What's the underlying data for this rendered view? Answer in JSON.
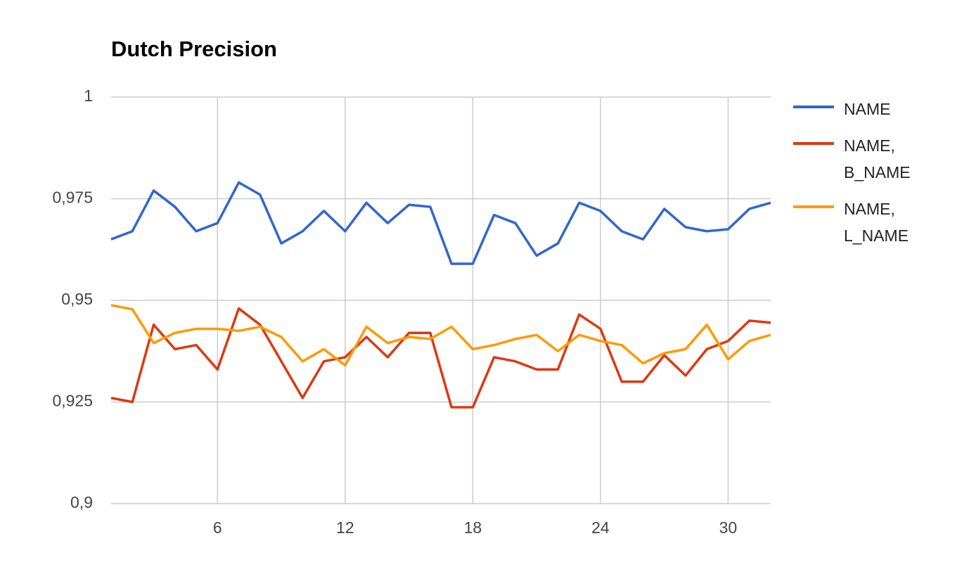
{
  "chart_data": {
    "type": "line",
    "title": "Dutch Precision",
    "x": [
      1,
      2,
      3,
      4,
      5,
      6,
      7,
      8,
      9,
      10,
      11,
      12,
      13,
      14,
      15,
      16,
      17,
      18,
      19,
      20,
      21,
      22,
      23,
      24,
      25,
      26,
      27,
      28,
      29,
      30,
      31,
      32
    ],
    "xlim": [
      1,
      32
    ],
    "xticks": [
      6,
      12,
      18,
      24,
      30
    ],
    "ylim": [
      0.9,
      1
    ],
    "yticks": [
      {
        "value": 0.9,
        "label": "0,9"
      },
      {
        "value": 0.925,
        "label": "0,925"
      },
      {
        "value": 0.95,
        "label": "0,95"
      },
      {
        "value": 0.975,
        "label": "0,975"
      },
      1
    ],
    "grid": true,
    "legend": "right",
    "series": [
      {
        "name": "NAME",
        "color": "#3366cc",
        "values": [
          0.965,
          0.967,
          0.977,
          0.973,
          0.967,
          0.969,
          0.979,
          0.976,
          0.964,
          0.967,
          0.972,
          0.967,
          0.974,
          0.969,
          0.9735,
          0.973,
          0.959,
          0.959,
          0.971,
          0.969,
          0.961,
          0.964,
          0.974,
          0.972,
          0.967,
          0.965,
          0.9725,
          0.968,
          0.967,
          0.9675,
          0.9725,
          0.974
        ]
      },
      {
        "name": "NAME, B_NAME",
        "color": "#dc3912",
        "values": [
          0.926,
          0.925,
          0.944,
          0.938,
          0.939,
          0.933,
          0.948,
          0.944,
          0.935,
          0.926,
          0.935,
          0.936,
          0.941,
          0.936,
          0.942,
          0.942,
          0.9237,
          0.9237,
          0.936,
          0.935,
          0.933,
          0.933,
          0.9465,
          0.943,
          0.93,
          0.93,
          0.9365,
          0.9315,
          0.938,
          0.94,
          0.945,
          0.9445
        ]
      },
      {
        "name": "NAME, L_NAME",
        "color": "#ff9900",
        "values": [
          0.9488,
          0.9478,
          0.9395,
          0.942,
          0.943,
          0.943,
          0.9425,
          0.9435,
          0.941,
          0.935,
          0.938,
          0.934,
          0.9435,
          0.9395,
          0.941,
          0.9405,
          0.9435,
          0.938,
          0.939,
          0.9405,
          0.9415,
          0.9375,
          0.9415,
          0.94,
          0.939,
          0.9345,
          0.937,
          0.938,
          0.944,
          0.9355,
          0.94,
          0.9415
        ]
      }
    ]
  }
}
